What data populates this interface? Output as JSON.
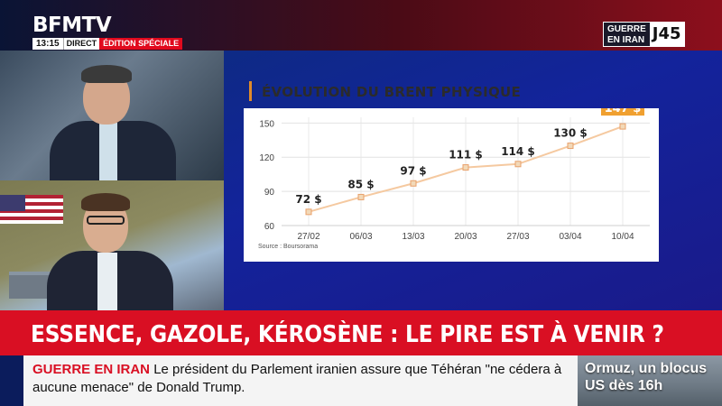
{
  "channel": {
    "logo": "BFMTV",
    "time": "13:15",
    "live_label": "DIRECT",
    "edition_label": "ÉDITION SPÉCIALE",
    "badge_line1": "GUERRE",
    "badge_line2": "EN IRAN",
    "badge_day": "J45"
  },
  "chart": {
    "title": "ÉVOLUTION DU BRENT PHYSIQUE",
    "source": "Source : Boursorama",
    "highlight_color": "#f0a030",
    "line_color": "#f5c9a0",
    "point_color": "#f2d9b8"
  },
  "chart_data": {
    "type": "line",
    "title": "ÉVOLUTION DU BRENT PHYSIQUE",
    "categories": [
      "27/02",
      "06/03",
      "13/03",
      "20/03",
      "27/03",
      "03/04",
      "10/04"
    ],
    "values": [
      72,
      85,
      97,
      111,
      114,
      130,
      147
    ],
    "value_labels": [
      "72 $",
      "85 $",
      "97 $",
      "111 $",
      "114 $",
      "130 $",
      "147 $"
    ],
    "yticks": [
      60,
      90,
      120,
      150
    ],
    "ylim": [
      60,
      155
    ],
    "grid": true,
    "xlabel": "",
    "ylabel": ""
  },
  "headline": {
    "text": "ESSENCE, GAZOLE, KÉROSÈNE : LE PIRE EST À VENIR ?"
  },
  "ticker": {
    "label": "GUERRE EN IRAN",
    "text": "Le président du Parlement iranien assure que Téhéran \"ne cédera à aucune menace\" de Donald Trump."
  },
  "teaser": {
    "text": "Ormuz, un blocus US dès 16h"
  }
}
